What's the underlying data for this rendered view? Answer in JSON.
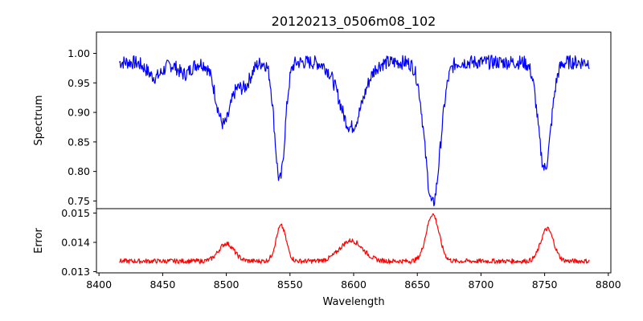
{
  "chart_data": {
    "type": "line",
    "title": "20120213_0506m08_102",
    "xlabel": "Wavelength",
    "xlim": [
      8398,
      8802
    ],
    "x_ticks": [
      8400,
      8450,
      8500,
      8550,
      8600,
      8650,
      8700,
      8750,
      8800
    ],
    "x_range": [
      8416,
      8785
    ],
    "panels": [
      {
        "id": "spectrum",
        "ylabel": "Spectrum",
        "ylim": [
          0.737,
          1.036
        ],
        "y_ticks": [
          0.75,
          0.8,
          0.85,
          0.9,
          0.95,
          1.0
        ],
        "y_tick_labels": [
          "0.75",
          "0.80",
          "0.85",
          "0.90",
          "0.95",
          "1.00"
        ],
        "series": [
          {
            "name": "Spectrum",
            "color": "#0000ff",
            "baseline": 0.985,
            "noise": 0.012,
            "features": [
              {
                "center": 8444,
                "depth": 0.025,
                "width": 6
              },
              {
                "center": 8467,
                "depth": 0.02,
                "width": 5
              },
              {
                "center": 8498,
                "depth": 0.105,
                "width": 6
              },
              {
                "center": 8514,
                "depth": 0.04,
                "width": 5
              },
              {
                "center": 8542,
                "depth": 0.2,
                "width": 4
              },
              {
                "center": 8598,
                "depth": 0.11,
                "width": 9
              },
              {
                "center": 8662,
                "depth": 0.24,
                "width": 6
              },
              {
                "center": 8750,
                "depth": 0.18,
                "width": 5
              }
            ]
          }
        ]
      },
      {
        "id": "error",
        "ylabel": "Error",
        "ylim": [
          0.01296,
          0.01515
        ],
        "y_ticks": [
          0.013,
          0.014,
          0.015
        ],
        "y_tick_labels": [
          "0.013",
          "0.014",
          "0.015"
        ],
        "series": [
          {
            "name": "Error",
            "color": "#ff0000",
            "baseline": 0.01336,
            "noise": 8e-05,
            "features": [
              {
                "center": 8500,
                "height": 0.0006,
                "width": 6
              },
              {
                "center": 8543,
                "height": 0.0012,
                "width": 4
              },
              {
                "center": 8598,
                "height": 0.0007,
                "width": 9
              },
              {
                "center": 8662,
                "height": 0.0016,
                "width": 5
              },
              {
                "center": 8752,
                "height": 0.0011,
                "width": 5
              }
            ]
          }
        ]
      }
    ]
  }
}
